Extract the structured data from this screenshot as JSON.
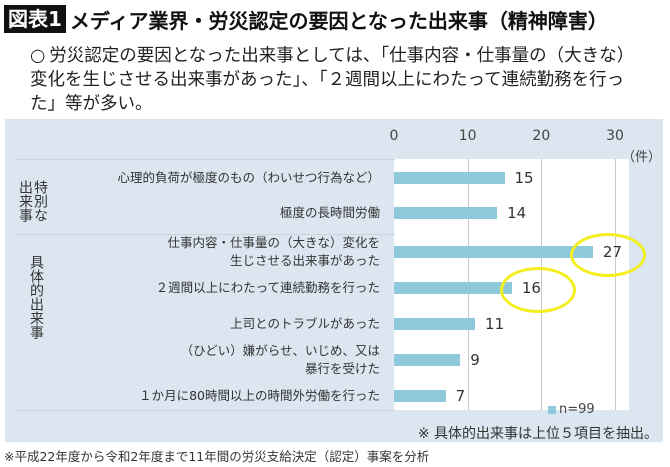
{
  "header": {
    "badge": "図表1",
    "title": "メディア業界・労災認定の要因となった出来事（精神障害）"
  },
  "description": {
    "bullet": "○",
    "text": "労災認定の要因となった出来事としては、「仕事内容・仕事量の（大きな）変化を生じさせる出来事があった」、「２週間以上にわたって連続勤務を行った」等が多い。"
  },
  "chart_data": {
    "type": "bar",
    "orientation": "horizontal",
    "xlim": [
      0,
      30
    ],
    "xticks": [
      "0",
      "10",
      "20",
      "30"
    ],
    "unit": "（件）",
    "grid": true,
    "bar_color": "#8ecadb",
    "highlight_color": "#f2ee20",
    "groups": [
      {
        "label": "特別な出来事",
        "categories": [
          "心理的負荷が極度のもの（わいせつ行為など）",
          "極度の長時間労働"
        ],
        "values": [
          15,
          14
        ]
      },
      {
        "label": "具体的出来事",
        "categories": [
          "仕事内容・仕事量の（大きな）変化を\n生じさせる出来事があった",
          "２週間以上にわたって連続勤務を行った",
          "上司とのトラブルがあった",
          "（ひどい）嫌がらせ、いじめ、又は\n暴行を受けた",
          "１か月に80時間以上の時間外労働を行った"
        ],
        "values": [
          27,
          16,
          11,
          9,
          7
        ]
      }
    ],
    "highlighted_values": [
      27,
      16
    ],
    "legend": "n=99",
    "legend_position": "bottom-right"
  },
  "note": "※ 具体的出来事は上位５項目を抽出。",
  "footnote": "※平成22年度から令和2年度まで11年間の労災支給決定（認定）事案を分析"
}
